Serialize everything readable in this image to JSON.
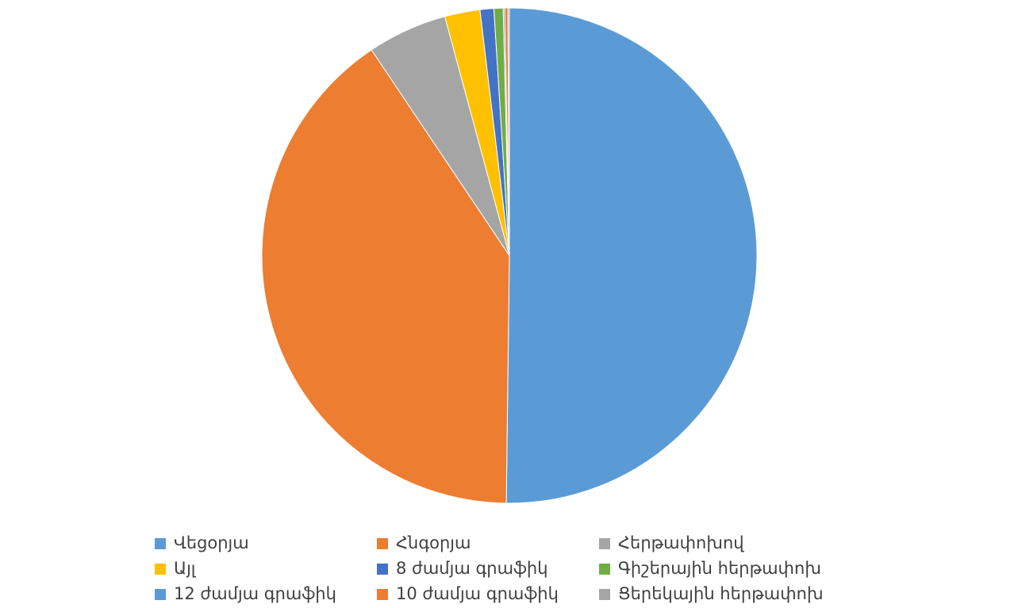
{
  "chart_data": {
    "type": "pie",
    "categories": [
      "Վեցօրյա",
      "Հնգօրյա",
      "Հերթափոխով",
      "Այլ",
      "8 ժամյա գրաֆիկ",
      "Գիշերային հերթափոխ",
      "12 ժամյա գրաֆիկ",
      "10 ժամյա գրաֆիկ",
      "Ցերեկային հերթափոխ"
    ],
    "values": [
      50.2,
      40.4,
      5.2,
      2.3,
      0.9,
      0.6,
      0.1,
      0.2,
      0.1
    ],
    "colors": [
      "#5b9bd5",
      "#ed7d31",
      "#a5a5a5",
      "#ffc000",
      "#4472c4",
      "#70ad47",
      "#5b9bd5",
      "#ed7d31",
      "#a5a5a5"
    ]
  }
}
